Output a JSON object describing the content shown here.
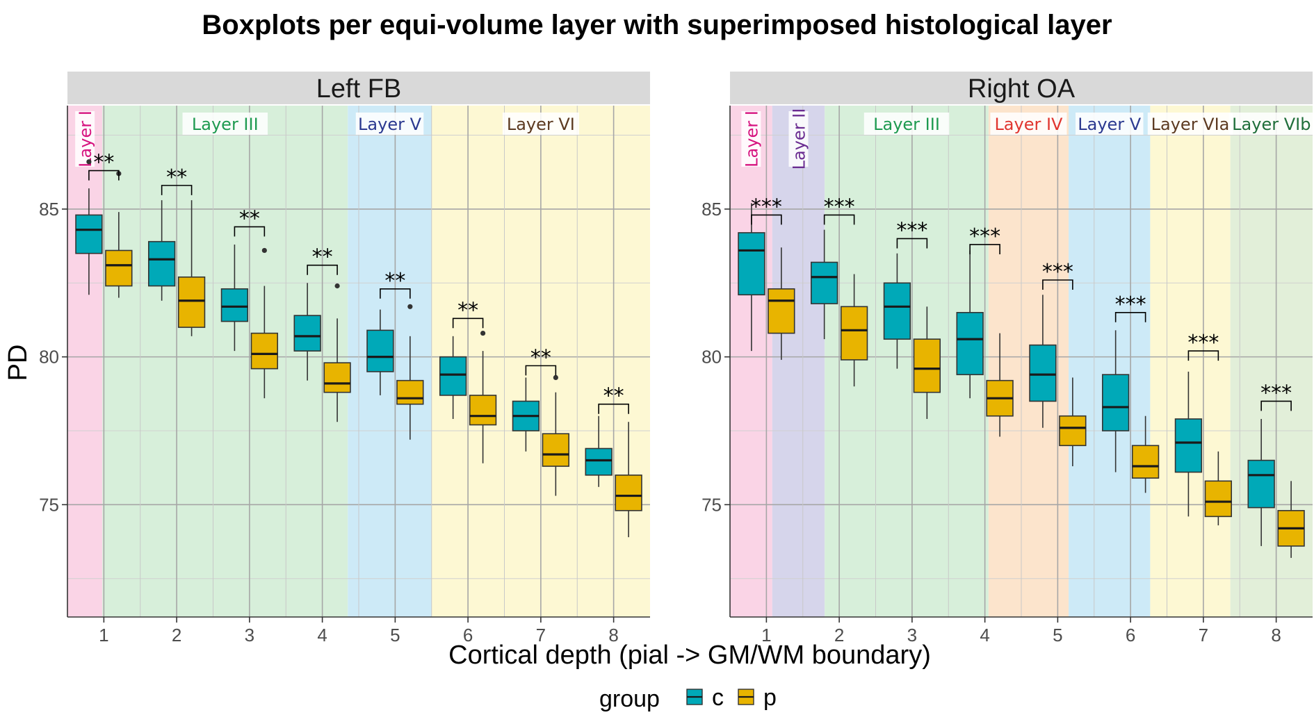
{
  "title": "Boxplots per equi-volume layer with superimposed histological layer",
  "legend": {
    "title": "group",
    "items": [
      {
        "label": "c",
        "color": "#00A9B8"
      },
      {
        "label": "p",
        "color": "#E8B400"
      }
    ]
  },
  "chart_data": {
    "type": "boxplot",
    "title": "Boxplots per equi-volume layer with superimposed histological layer",
    "xlabel": "Cortical depth (pial -> GM/WM boundary)",
    "ylabel": "PD",
    "ylim": [
      71.2,
      88.5
    ],
    "yticks": [
      75,
      80,
      85
    ],
    "categories": [
      "1",
      "2",
      "3",
      "4",
      "5",
      "6",
      "7",
      "8"
    ],
    "grid": true,
    "legend_position": "bottom",
    "facets": [
      {
        "name": "Left FB",
        "layers": [
          {
            "label": "Layer I",
            "from": 0.5,
            "to": 0.98,
            "fill": "#FAD4E6",
            "text_color": "#D6137F",
            "vertical": true
          },
          {
            "label": "Layer III",
            "from": 0.98,
            "to": 4.35,
            "fill": "#D7EFDA",
            "text_color": "#1E9A50",
            "vertical": false
          },
          {
            "label": "Layer V",
            "from": 4.35,
            "to": 5.5,
            "fill": "#CDEAF7",
            "text_color": "#2B3990",
            "vertical": false
          },
          {
            "label": "Layer VI",
            "from": 5.5,
            "to": 8.5,
            "fill": "#FDF8D3",
            "text_color": "#5C3A21",
            "vertical": false
          }
        ],
        "series": [
          {
            "name": "c",
            "boxes": [
              {
                "min": 82.1,
                "q1": 83.5,
                "median": 84.3,
                "q3": 84.8,
                "max": 85.7,
                "outliers": [
                  86.6
                ]
              },
              {
                "min": 81.9,
                "q1": 82.4,
                "median": 83.3,
                "q3": 83.9,
                "max": 85.3,
                "outliers": []
              },
              {
                "min": 80.2,
                "q1": 81.2,
                "median": 81.7,
                "q3": 82.3,
                "max": 83.8,
                "outliers": []
              },
              {
                "min": 79.2,
                "q1": 80.2,
                "median": 80.7,
                "q3": 81.4,
                "max": 82.5,
                "outliers": []
              },
              {
                "min": 78.7,
                "q1": 79.5,
                "median": 80.0,
                "q3": 80.9,
                "max": 81.6,
                "outliers": []
              },
              {
                "min": 77.9,
                "q1": 78.7,
                "median": 79.4,
                "q3": 80.0,
                "max": 80.7,
                "outliers": []
              },
              {
                "min": 76.8,
                "q1": 77.5,
                "median": 78.0,
                "q3": 78.5,
                "max": 79.3,
                "outliers": []
              },
              {
                "min": 75.6,
                "q1": 76.0,
                "median": 76.5,
                "q3": 76.9,
                "max": 78.0,
                "outliers": []
              }
            ]
          },
          {
            "name": "p",
            "boxes": [
              {
                "min": 82.0,
                "q1": 82.4,
                "median": 83.1,
                "q3": 83.6,
                "max": 84.9,
                "outliers": [
                  86.2
                ]
              },
              {
                "min": 80.7,
                "q1": 81.0,
                "median": 81.9,
                "q3": 82.7,
                "max": 85.3,
                "outliers": []
              },
              {
                "min": 78.6,
                "q1": 79.6,
                "median": 80.1,
                "q3": 80.8,
                "max": 82.4,
                "outliers": [
                  83.6
                ]
              },
              {
                "min": 77.8,
                "q1": 78.8,
                "median": 79.1,
                "q3": 79.8,
                "max": 81.3,
                "outliers": [
                  82.4
                ]
              },
              {
                "min": 77.2,
                "q1": 78.4,
                "median": 78.6,
                "q3": 79.2,
                "max": 80.7,
                "outliers": [
                  81.7
                ]
              },
              {
                "min": 76.4,
                "q1": 77.7,
                "median": 78.0,
                "q3": 78.7,
                "max": 80.2,
                "outliers": [
                  80.8
                ]
              },
              {
                "min": 75.3,
                "q1": 76.3,
                "median": 76.7,
                "q3": 77.4,
                "max": 78.8,
                "outliers": [
                  79.3
                ]
              },
              {
                "min": 73.9,
                "q1": 74.8,
                "median": 75.3,
                "q3": 76.0,
                "max": 77.8,
                "outliers": []
              }
            ]
          }
        ],
        "significance": [
          {
            "x": 1,
            "label": "**",
            "y": 86.3
          },
          {
            "x": 2,
            "label": "**",
            "y": 85.8
          },
          {
            "x": 3,
            "label": "**",
            "y": 84.4
          },
          {
            "x": 4,
            "label": "**",
            "y": 83.1
          },
          {
            "x": 5,
            "label": "**",
            "y": 82.3
          },
          {
            "x": 6,
            "label": "**",
            "y": 81.3
          },
          {
            "x": 7,
            "label": "**",
            "y": 79.7
          },
          {
            "x": 8,
            "label": "**",
            "y": 78.4
          }
        ]
      },
      {
        "name": "Right OA",
        "layers": [
          {
            "label": "Layer I",
            "from": 0.5,
            "to": 1.08,
            "fill": "#FAD4E6",
            "text_color": "#D6137F",
            "vertical": true
          },
          {
            "label": "Layer II",
            "from": 1.08,
            "to": 1.8,
            "fill": "#D6D5EB",
            "text_color": "#6A2C91",
            "vertical": true
          },
          {
            "label": "Layer III",
            "from": 1.8,
            "to": 4.05,
            "fill": "#D7EFDA",
            "text_color": "#1E9A50",
            "vertical": false
          },
          {
            "label": "Layer IV",
            "from": 4.05,
            "to": 5.15,
            "fill": "#FCE4CC",
            "text_color": "#E0352F",
            "vertical": false
          },
          {
            "label": "Layer V",
            "from": 5.15,
            "to": 6.27,
            "fill": "#CDEAF7",
            "text_color": "#2B3990",
            "vertical": false
          },
          {
            "label": "Layer VIa",
            "from": 6.27,
            "to": 7.37,
            "fill": "#FDF8D3",
            "text_color": "#5C3A21",
            "vertical": false
          },
          {
            "label": "Layer VIb",
            "from": 7.37,
            "to": 8.5,
            "fill": "#E2EFD9",
            "text_color": "#1F6E3A",
            "vertical": false
          }
        ],
        "series": [
          {
            "name": "c",
            "boxes": [
              {
                "min": 80.2,
                "q1": 82.1,
                "median": 83.6,
                "q3": 84.2,
                "max": 85.2,
                "outliers": []
              },
              {
                "min": 80.6,
                "q1": 81.8,
                "median": 82.7,
                "q3": 83.2,
                "max": 84.3,
                "outliers": []
              },
              {
                "min": 79.6,
                "q1": 80.6,
                "median": 81.7,
                "q3": 82.5,
                "max": 83.5,
                "outliers": []
              },
              {
                "min": 78.6,
                "q1": 79.4,
                "median": 80.6,
                "q3": 81.5,
                "max": 83.6,
                "outliers": []
              },
              {
                "min": 77.6,
                "q1": 78.5,
                "median": 79.4,
                "q3": 80.4,
                "max": 82.1,
                "outliers": []
              },
              {
                "min": 76.1,
                "q1": 77.5,
                "median": 78.3,
                "q3": 79.4,
                "max": 80.9,
                "outliers": []
              },
              {
                "min": 74.6,
                "q1": 76.1,
                "median": 77.1,
                "q3": 77.9,
                "max": 79.5,
                "outliers": []
              },
              {
                "min": 73.6,
                "q1": 74.9,
                "median": 76.0,
                "q3": 76.5,
                "max": 77.9,
                "outliers": []
              }
            ]
          },
          {
            "name": "p",
            "boxes": [
              {
                "min": 79.9,
                "q1": 80.8,
                "median": 81.9,
                "q3": 82.3,
                "max": 83.7,
                "outliers": []
              },
              {
                "min": 79.0,
                "q1": 79.9,
                "median": 80.9,
                "q3": 81.7,
                "max": 82.8,
                "outliers": []
              },
              {
                "min": 77.9,
                "q1": 78.8,
                "median": 79.6,
                "q3": 80.6,
                "max": 81.7,
                "outliers": []
              },
              {
                "min": 77.3,
                "q1": 78.0,
                "median": 78.6,
                "q3": 79.2,
                "max": 80.8,
                "outliers": []
              },
              {
                "min": 76.3,
                "q1": 77.0,
                "median": 77.6,
                "q3": 78.0,
                "max": 79.3,
                "outliers": []
              },
              {
                "min": 75.4,
                "q1": 75.9,
                "median": 76.3,
                "q3": 77.0,
                "max": 78.0,
                "outliers": []
              },
              {
                "min": 74.3,
                "q1": 74.6,
                "median": 75.1,
                "q3": 75.8,
                "max": 76.8,
                "outliers": []
              },
              {
                "min": 73.2,
                "q1": 73.6,
                "median": 74.2,
                "q3": 74.8,
                "max": 75.8,
                "outliers": []
              }
            ]
          }
        ],
        "significance": [
          {
            "x": 1,
            "label": "***",
            "y": 84.8
          },
          {
            "x": 2,
            "label": "***",
            "y": 84.8
          },
          {
            "x": 3,
            "label": "***",
            "y": 84.0
          },
          {
            "x": 4,
            "label": "***",
            "y": 83.8
          },
          {
            "x": 5,
            "label": "***",
            "y": 82.6
          },
          {
            "x": 6,
            "label": "***",
            "y": 81.5
          },
          {
            "x": 7,
            "label": "***",
            "y": 80.2
          },
          {
            "x": 8,
            "label": "***",
            "y": 78.5
          }
        ]
      }
    ]
  }
}
